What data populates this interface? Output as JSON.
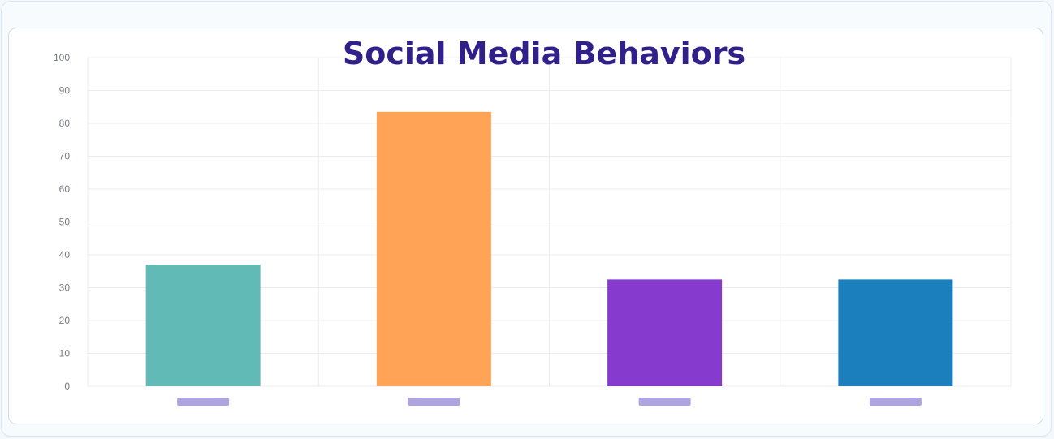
{
  "chart_data": {
    "type": "bar",
    "title": "Social Media Behaviors",
    "xlabel": "",
    "ylabel": "",
    "ylim": [
      0,
      100
    ],
    "yticks": [
      0,
      10,
      20,
      30,
      40,
      50,
      60,
      70,
      80,
      90,
      100
    ],
    "categories": [
      "",
      "",
      "",
      ""
    ],
    "values": [
      37,
      83.5,
      32.5,
      32.5
    ],
    "colors": [
      "#61bab5",
      "#ffa456",
      "#863bce",
      "#1c7fbd"
    ],
    "category_label_placeholder_color": "#b0a4e0",
    "grid": true,
    "legend": "none"
  }
}
